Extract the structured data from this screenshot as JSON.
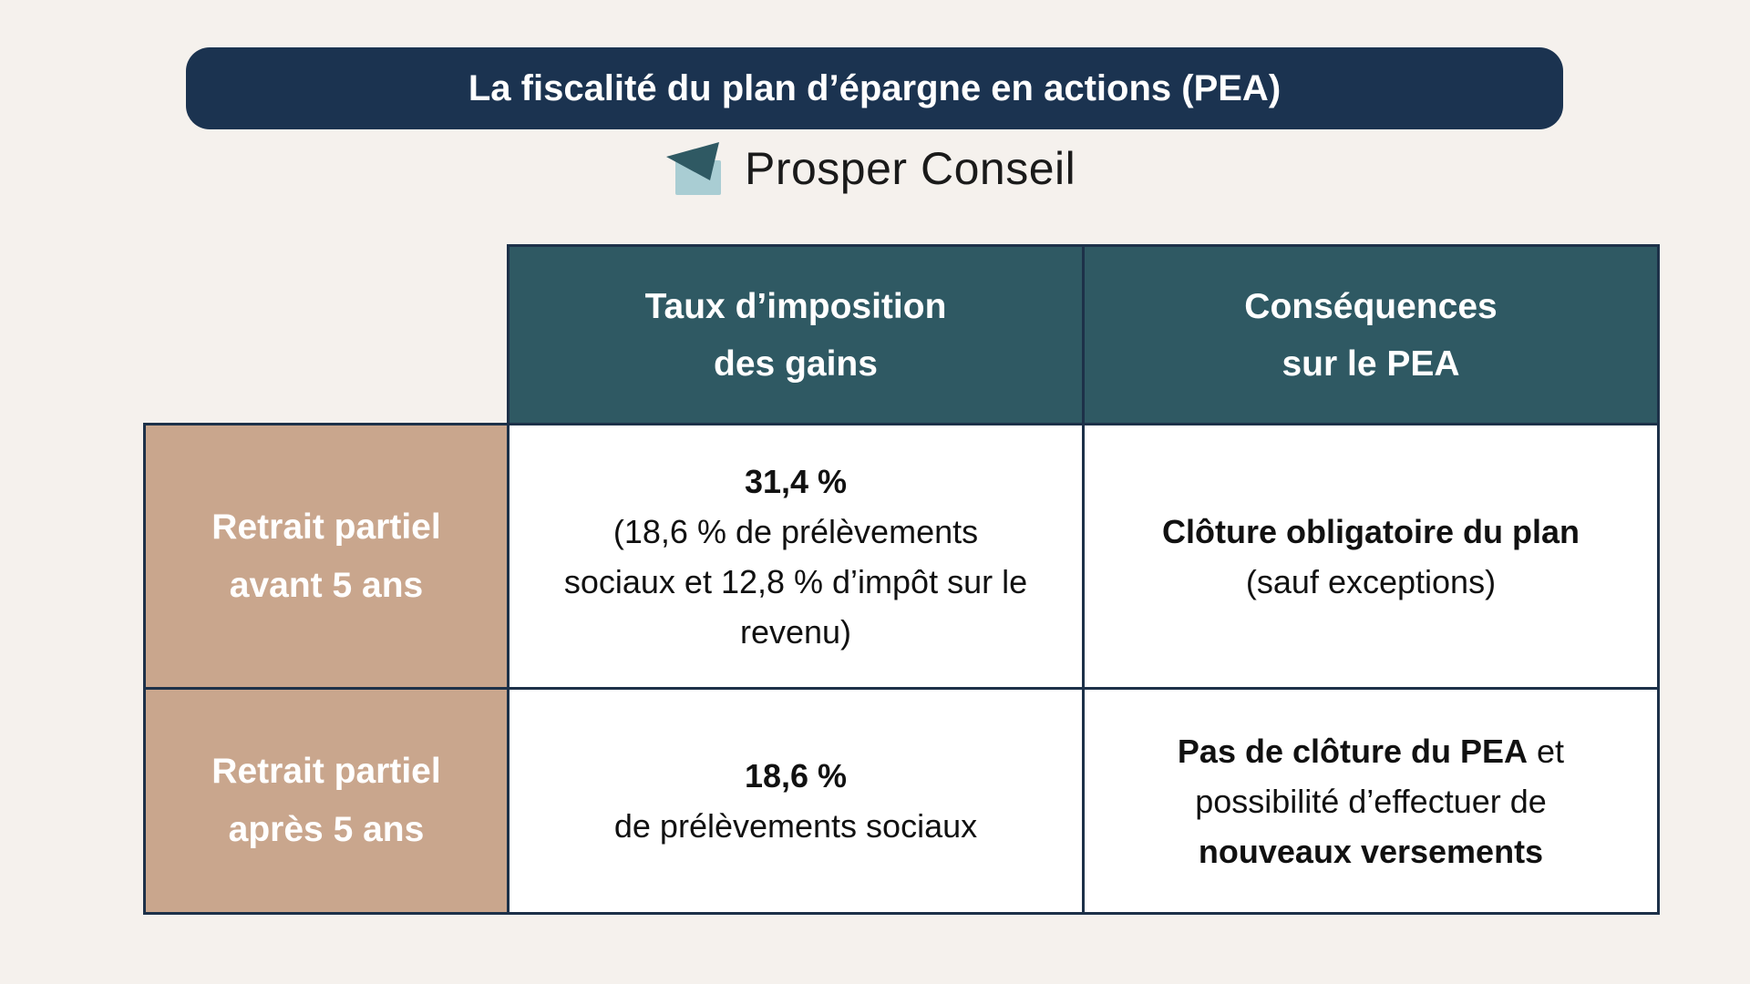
{
  "title": "La fiscalité du plan d’épargne en actions (PEA)",
  "logo": {
    "text": "Prosper Conseil",
    "colors": {
      "dark": "#2f5963",
      "light": "#a9cdd3"
    }
  },
  "table": {
    "headers": [
      "Taux d’imposition",
      "des gains",
      "Conséquences",
      "sur le PEA"
    ],
    "rows": [
      {
        "label": [
          "Retrait partiel",
          "avant 5 ans"
        ],
        "rate_bold": "31,4 %",
        "rate_text": "(18,6 % de prélèvements sociaux et 12,8 % d’impôt sur le revenu)",
        "consequence_bold": "Clôture obligatoire du plan",
        "consequence_text": "(sauf exceptions)"
      },
      {
        "label": [
          "Retrait partiel",
          "après 5 ans"
        ],
        "rate_bold": "18,6 %",
        "rate_text": "de prélèvements sociaux",
        "consequence_bold": "Pas de clôture du PEA",
        "consequence_text": " et possibilité d’effectuer de ",
        "consequence_bold2": "nouveaux versements"
      }
    ]
  },
  "colors": {
    "background": "#f5f1ed",
    "title_bar": "#1b3350",
    "header": "#2f5963",
    "row_label": "#c9a68d",
    "border": "#1d3149"
  }
}
